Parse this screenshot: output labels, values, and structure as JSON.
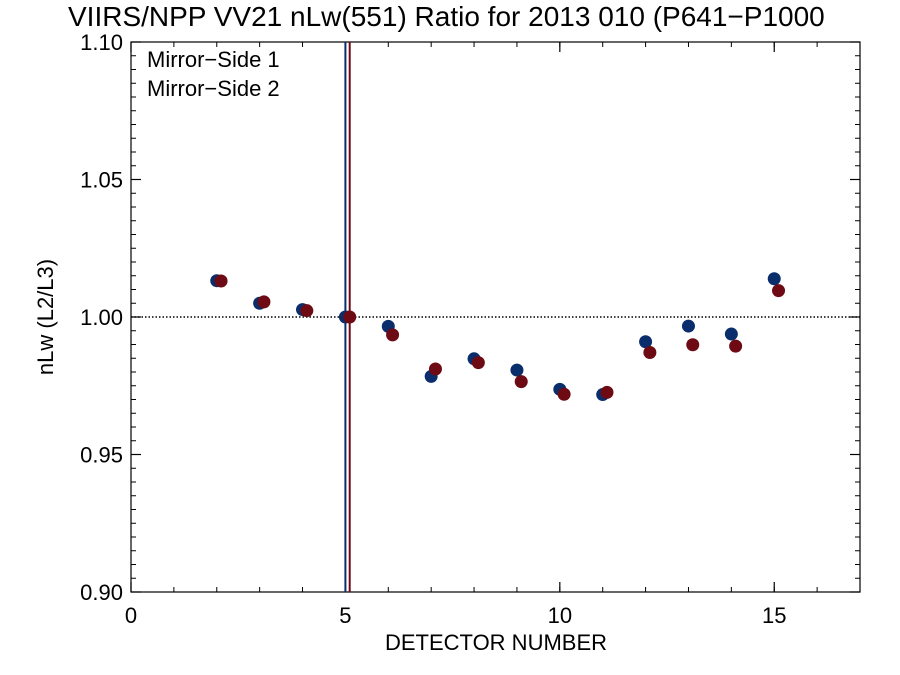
{
  "chart_data": {
    "type": "scatter",
    "title": "VIIRS/NPP VV21 nLw(551) Ratio for 2013 010 (P641−P1000",
    "xlabel": "DETECTOR NUMBER",
    "ylabel": "nLw (L2/L3)",
    "xlim": [
      0,
      17
    ],
    "ylim": [
      0.9,
      1.1
    ],
    "xticks": [
      0,
      5,
      10,
      15
    ],
    "xtick_labels": [
      "0",
      "5",
      "10",
      "15"
    ],
    "yticks": [
      0.9,
      0.95,
      1.0,
      1.05,
      1.1
    ],
    "ytick_labels": [
      "0.90",
      "0.95",
      "1.00",
      "1.05",
      "1.10"
    ],
    "reference_line_y": 1.0,
    "legend_placement": "top-left",
    "grid": false,
    "series": [
      {
        "name": "Mirror−Side 1",
        "color": "#0a2d6b",
        "marker_line_x": 5,
        "x": [
          2,
          3,
          4,
          5,
          6,
          7,
          8,
          9,
          10,
          11,
          12,
          13,
          14,
          15
        ],
        "values": [
          1.0132,
          1.005,
          1.0027,
          1.0,
          0.9966,
          0.9784,
          0.9848,
          0.9807,
          0.9737,
          0.9718,
          0.991,
          0.9967,
          0.9938,
          1.0139
        ]
      },
      {
        "name": "Mirror−Side 2",
        "color": "#6e0a14",
        "marker_line_x": 5.1,
        "x": [
          2.1,
          3.1,
          4.1,
          5.1,
          6.1,
          7.1,
          8.1,
          9.1,
          10.1,
          11.1,
          12.1,
          13.1,
          14.1,
          15.1
        ],
        "values": [
          1.0131,
          1.0055,
          1.0023,
          1.0,
          0.9935,
          0.9811,
          0.9834,
          0.9765,
          0.9719,
          0.9726,
          0.9871,
          0.9899,
          0.9894,
          1.0096
        ]
      }
    ]
  }
}
